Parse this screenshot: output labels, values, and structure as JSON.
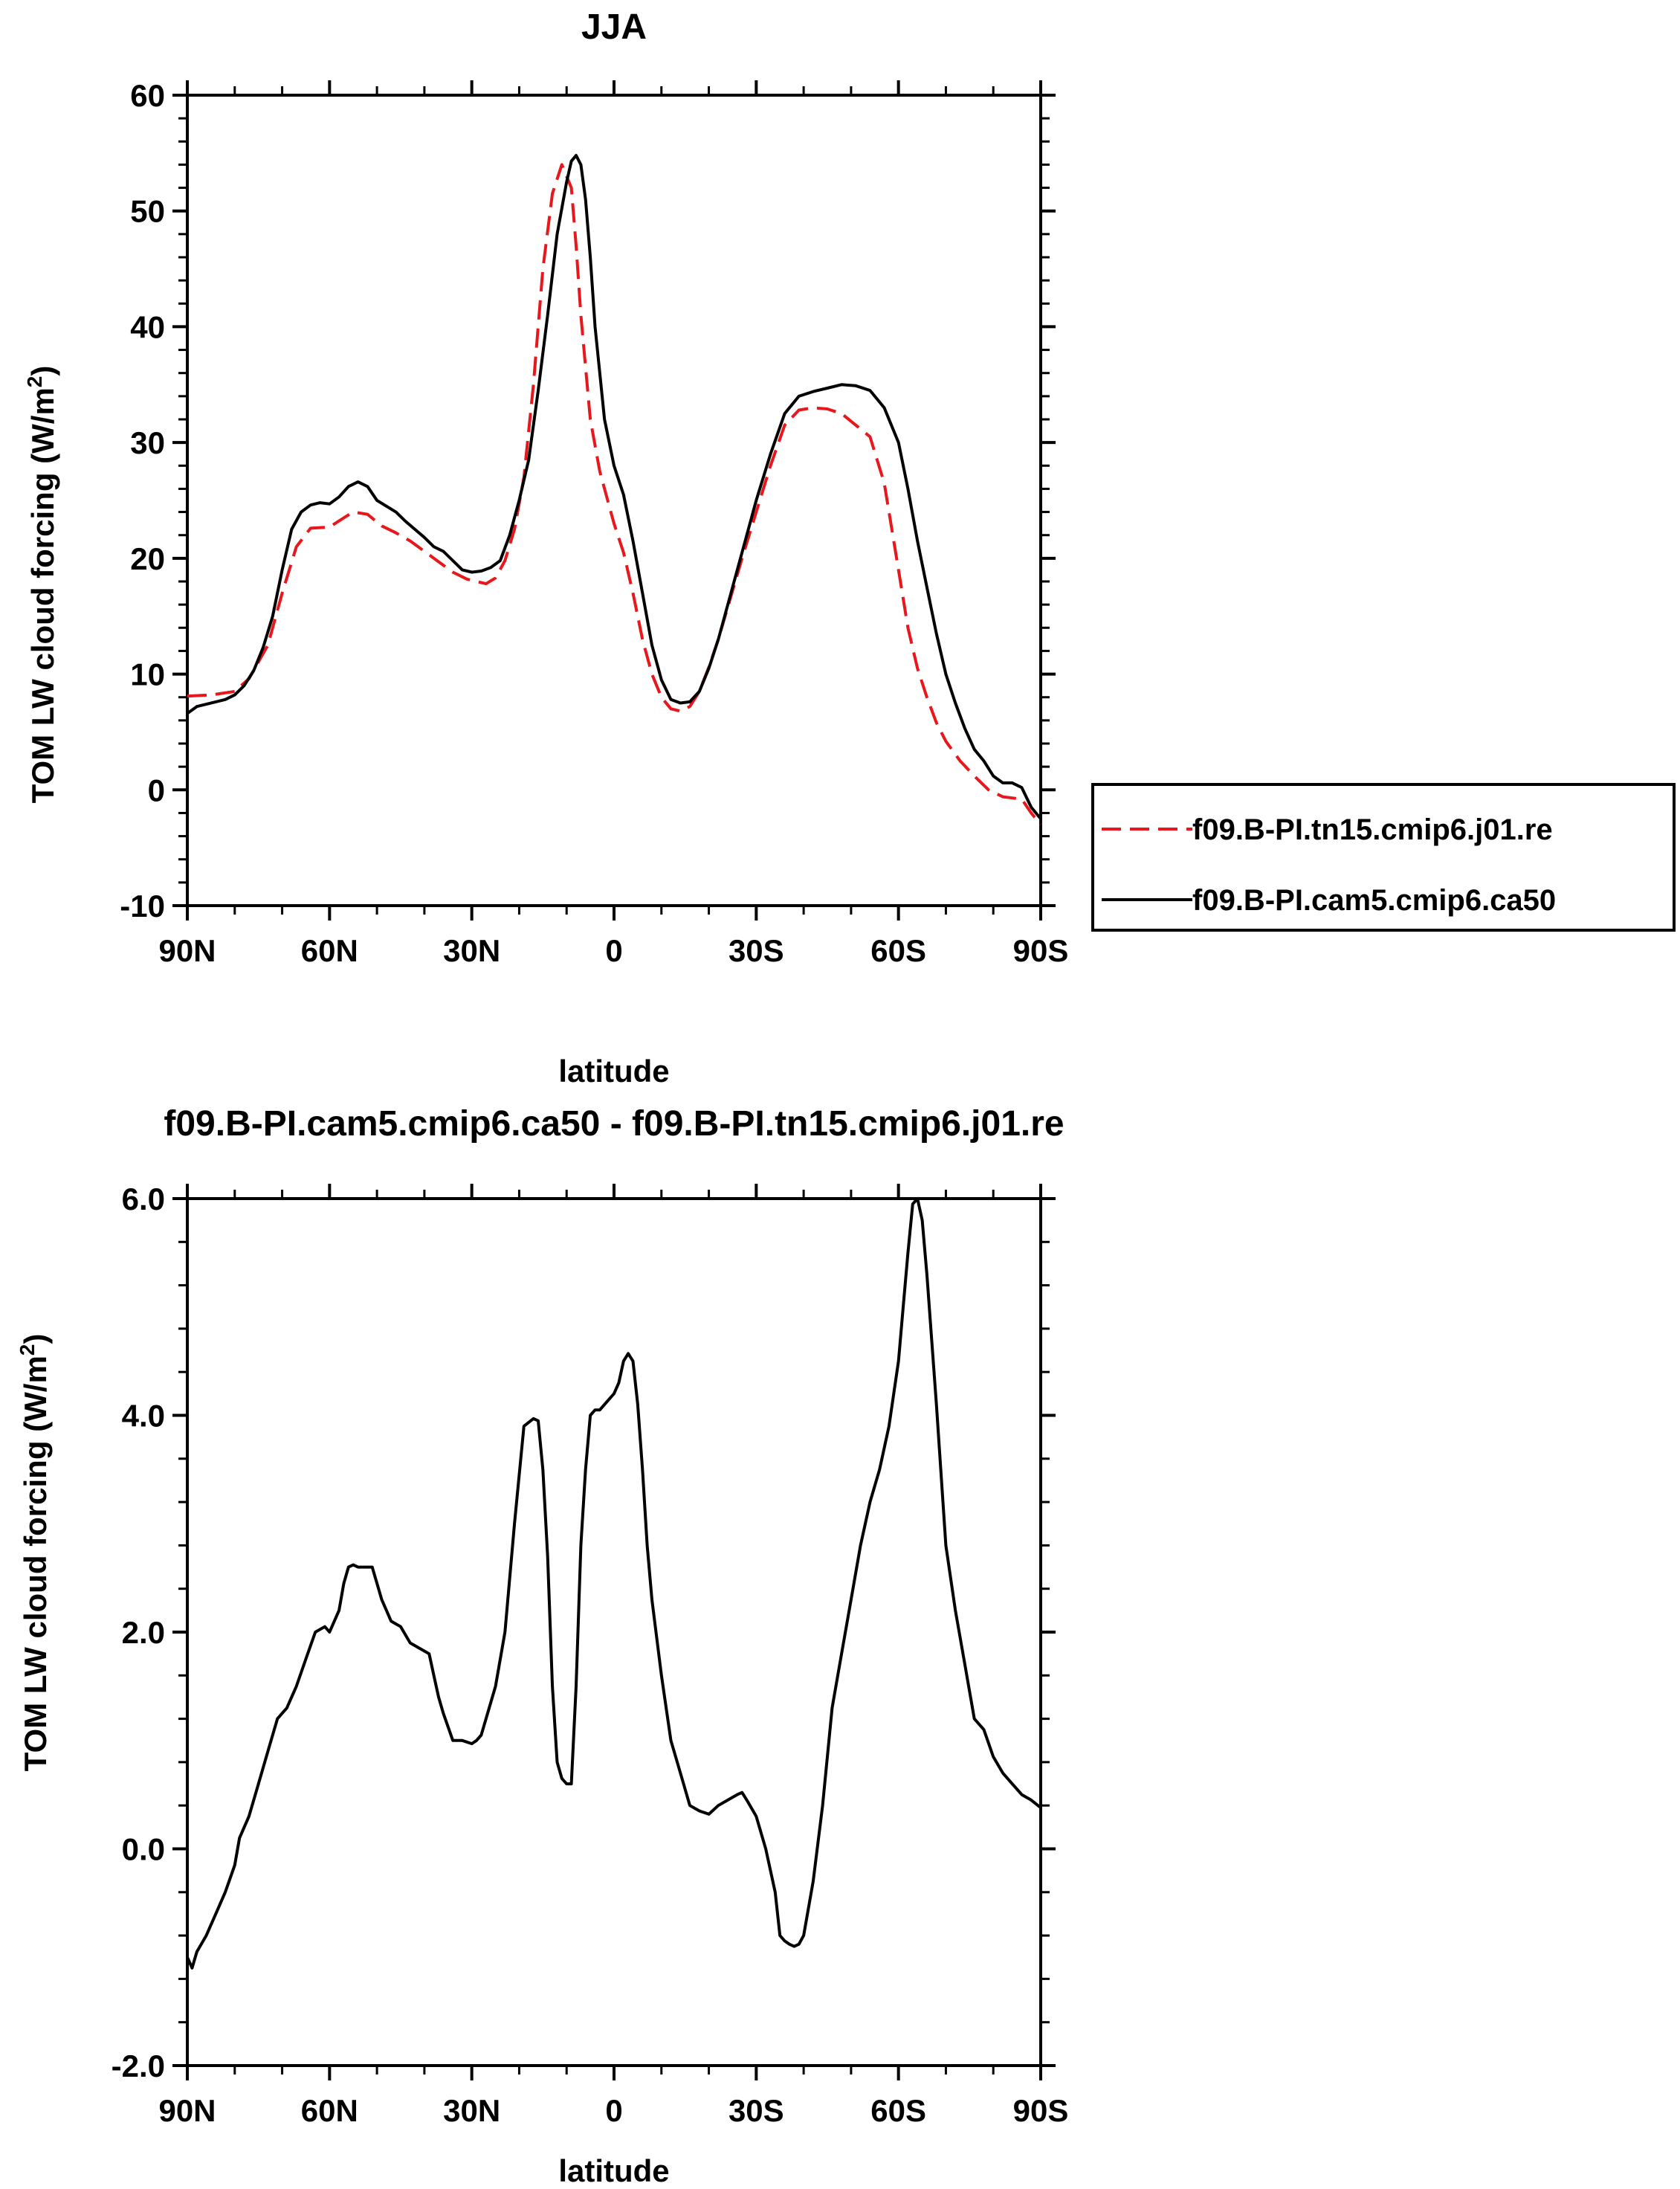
{
  "chart_data": [
    {
      "type": "line",
      "title": "JJA",
      "xlabel": "latitude",
      "ylabel": "TOM LW cloud forcing (W/m²)",
      "ylabel_main": "TOM LW cloud forcing (W/m",
      "ylabel_sup": "2",
      "ylabel_end": ")",
      "xlim": [
        90,
        -90
      ],
      "ylim": [
        -10,
        60
      ],
      "xticks": [
        90,
        60,
        30,
        0,
        -30,
        -60,
        -90
      ],
      "xticklabels": [
        "90N",
        "60N",
        "30N",
        "0",
        "30S",
        "60S",
        "90S"
      ],
      "yticks": [
        -10,
        0,
        10,
        20,
        30,
        40,
        50,
        60
      ],
      "yticklabels": [
        "-10",
        "0",
        "10",
        "20",
        "30",
        "40",
        "50",
        "60"
      ],
      "legend_position": "right-outside",
      "series": [
        {
          "name": "f09.B-PI.tn15.cmip6.j01.re",
          "color": "#e8171c",
          "dash": "dashed",
          "x": [
            90,
            85,
            80,
            77,
            73,
            70,
            67,
            64,
            60,
            57,
            55,
            52,
            49,
            46,
            43,
            40,
            37,
            34,
            31,
            29,
            27,
            25,
            23,
            21,
            19,
            17,
            15,
            13,
            11,
            9,
            8,
            7,
            5,
            3,
            1,
            0,
            -2,
            -4,
            -6,
            -8,
            -10,
            -12,
            -14,
            -16,
            -18,
            -20,
            -22,
            -24,
            -27,
            -30,
            -33,
            -36,
            -39,
            -42,
            -45,
            -48,
            -51,
            -54,
            -57,
            -60,
            -62,
            -64,
            -66,
            -68,
            -70,
            -73,
            -76,
            -79,
            -82,
            -84,
            -86,
            -88,
            -90
          ],
          "y": [
            8.1,
            8.2,
            8.5,
            9.6,
            12.5,
            17.0,
            21.0,
            22.6,
            22.7,
            23.5,
            24.0,
            23.8,
            22.8,
            22.2,
            21.5,
            20.6,
            19.7,
            18.8,
            18.2,
            18.0,
            17.8,
            18.3,
            19.8,
            22.5,
            27.0,
            35.0,
            45.0,
            51.5,
            54.0,
            52.0,
            47.0,
            41.0,
            32.0,
            27.5,
            24.5,
            23.0,
            20.5,
            17.0,
            13.0,
            10.0,
            8.0,
            7.0,
            6.8,
            7.2,
            8.5,
            10.6,
            13.0,
            15.8,
            20.0,
            24.0,
            28.0,
            31.5,
            32.8,
            33.0,
            32.9,
            32.5,
            31.5,
            30.5,
            26.5,
            19.0,
            14.0,
            10.5,
            8.0,
            5.8,
            4.2,
            2.5,
            1.2,
            0.0,
            -0.6,
            -0.7,
            -0.8,
            -2.0,
            -3.0
          ]
        },
        {
          "name": "f09.B-PI.cam5.cmip6.ca50",
          "color": "#000000",
          "dash": "solid",
          "x": [
            90,
            88,
            86,
            84,
            82,
            80,
            78,
            76,
            74,
            72,
            70,
            68,
            66,
            64,
            62,
            60,
            58,
            56,
            54,
            52,
            50,
            48,
            46,
            44,
            42,
            40,
            38,
            36,
            34,
            32,
            30,
            28,
            26,
            24,
            22,
            20,
            18,
            16,
            14,
            12,
            10,
            9,
            8,
            7,
            6,
            5,
            4,
            2,
            0,
            -2,
            -4,
            -6,
            -8,
            -10,
            -12,
            -14,
            -16,
            -18,
            -20,
            -22,
            -24,
            -27,
            -30,
            -33,
            -36,
            -39,
            -42,
            -45,
            -48,
            -51,
            -54,
            -57,
            -60,
            -62,
            -64,
            -66,
            -68,
            -70,
            -72,
            -74,
            -76,
            -78,
            -80,
            -82,
            -84,
            -86,
            -88,
            -90
          ],
          "y": [
            6.6,
            7.2,
            7.4,
            7.6,
            7.8,
            8.2,
            9.0,
            10.3,
            12.3,
            15.0,
            19.0,
            22.5,
            24.0,
            24.6,
            24.8,
            24.7,
            25.3,
            26.2,
            26.6,
            26.2,
            25.0,
            24.5,
            24.0,
            23.2,
            22.5,
            21.8,
            21.0,
            20.6,
            19.8,
            19.0,
            18.8,
            18.9,
            19.2,
            19.8,
            22.0,
            25.0,
            28.5,
            34.5,
            41.0,
            48.0,
            52.5,
            54.3,
            54.8,
            54.0,
            51.0,
            46.0,
            40.0,
            32.0,
            28.0,
            25.5,
            21.5,
            17.0,
            12.5,
            9.5,
            7.8,
            7.5,
            7.6,
            8.5,
            10.5,
            13.0,
            16.0,
            20.5,
            25.0,
            29.0,
            32.5,
            34.0,
            34.4,
            34.7,
            35.0,
            34.9,
            34.5,
            33.0,
            30.0,
            26.0,
            21.5,
            17.5,
            13.5,
            10.0,
            7.5,
            5.3,
            3.5,
            2.5,
            1.2,
            0.6,
            0.6,
            0.2,
            -1.5,
            -2.5
          ]
        }
      ]
    },
    {
      "type": "line",
      "title": "f09.B-PI.cam5.cmip6.ca50 - f09.B-PI.tn15.cmip6.j01.re",
      "xlabel": "latitude",
      "ylabel": "TOM LW cloud forcing (W/m²)",
      "ylabel_main": "TOM LW cloud forcing (W/m",
      "ylabel_sup": "2",
      "ylabel_end": ")",
      "xlim": [
        90,
        -90
      ],
      "ylim": [
        -2.0,
        6.0
      ],
      "xticks": [
        90,
        60,
        30,
        0,
        -30,
        -60,
        -90
      ],
      "xticklabels": [
        "90N",
        "60N",
        "30N",
        "0",
        "30S",
        "60S",
        "90S"
      ],
      "yticks": [
        -2.0,
        0.0,
        2.0,
        4.0,
        6.0
      ],
      "yticklabels": [
        "-2.0",
        "0.0",
        "2.0",
        "4.0",
        "6.0"
      ],
      "series": [
        {
          "name": "",
          "color": "#000000",
          "dash": "solid",
          "x": [
            90,
            89,
            88,
            86,
            84,
            82,
            80,
            79,
            77,
            75,
            73,
            71,
            69,
            67,
            65,
            63,
            61,
            60,
            59,
            58,
            57,
            56,
            55,
            54,
            53,
            51,
            49,
            47,
            45,
            43,
            41,
            39,
            38,
            37,
            36,
            34,
            32,
            30,
            29,
            28,
            27,
            25,
            23,
            21,
            19,
            17,
            16,
            15,
            14,
            13,
            12,
            11,
            10,
            9,
            8,
            7,
            6,
            5,
            4,
            3,
            2,
            1,
            0,
            -1,
            -2,
            -3,
            -4,
            -5,
            -6,
            -7,
            -8,
            -10,
            -12,
            -14,
            -16,
            -18,
            -20,
            -22,
            -24,
            -26,
            -27,
            -28,
            -30,
            -32,
            -34,
            -35,
            -36,
            -37,
            -38,
            -39,
            -40,
            -42,
            -44,
            -46,
            -48,
            -50,
            -52,
            -54,
            -56,
            -58,
            -60,
            -61,
            -62,
            -63,
            -64,
            -65,
            -66,
            -67,
            -68,
            -70,
            -72,
            -74,
            -76,
            -78,
            -80,
            -82,
            -84,
            -86,
            -88,
            -90
          ],
          "y": [
            -1.0,
            -1.1,
            -0.95,
            -0.8,
            -0.6,
            -0.4,
            -0.15,
            0.1,
            0.3,
            0.6,
            0.9,
            1.2,
            1.3,
            1.5,
            1.75,
            2.0,
            2.05,
            2.0,
            2.1,
            2.2,
            2.45,
            2.6,
            2.62,
            2.6,
            2.6,
            2.6,
            2.3,
            2.1,
            2.05,
            1.9,
            1.85,
            1.8,
            1.6,
            1.4,
            1.25,
            1.0,
            1.0,
            0.97,
            1.0,
            1.05,
            1.2,
            1.5,
            2.0,
            3.0,
            3.9,
            3.97,
            3.95,
            3.5,
            2.7,
            1.5,
            0.8,
            0.65,
            0.6,
            0.6,
            1.5,
            2.8,
            3.5,
            4.0,
            4.05,
            4.05,
            4.1,
            4.15,
            4.2,
            4.3,
            4.5,
            4.57,
            4.5,
            4.1,
            3.5,
            2.8,
            2.3,
            1.6,
            1.0,
            0.7,
            0.4,
            0.35,
            0.32,
            0.4,
            0.45,
            0.5,
            0.52,
            0.45,
            0.3,
            0.0,
            -0.4,
            -0.8,
            -0.85,
            -0.88,
            -0.9,
            -0.88,
            -0.8,
            -0.3,
            0.4,
            1.3,
            1.8,
            2.3,
            2.8,
            3.2,
            3.5,
            3.9,
            4.5,
            5.0,
            5.5,
            5.95,
            6.0,
            5.8,
            5.3,
            4.7,
            4.1,
            2.8,
            2.2,
            1.7,
            1.2,
            1.1,
            0.85,
            0.7,
            0.6,
            0.5,
            0.45,
            0.38
          ]
        }
      ]
    }
  ]
}
